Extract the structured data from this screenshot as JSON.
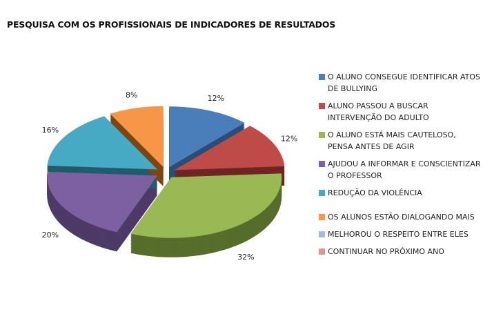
{
  "chart_data": {
    "type": "pie",
    "title": "PESQUISA COM OS PROFISSIONAIS DE INDICADORES DE RESULTADOS",
    "style": "3d-exploded",
    "legend_position": "right",
    "categories": [
      "O ALUNO CONSEGUE IDENTIFICAR ATOS DE BULLYING",
      "ALUNO PASSOU A BUSCAR INTERVENÇÃO DO ADULTO",
      "O ALUNO ESTÁ MAIS CAUTELOSO, PENSA ANTES DE AGIR",
      "AJUDOU A INFORMAR E CONSCIENTIZAR O PROFESSOR",
      "REDUÇÃO DA VIOLÊNCIA",
      "OS ALUNOS ESTÃO DIALOGANDO MAIS",
      "MELHOROU O RESPEITO ENTRE ELES",
      "CONTINUAR NO PRÓXIMO ANO"
    ],
    "values": [
      12,
      12,
      32,
      20,
      16,
      8,
      0,
      0
    ],
    "data_labels": [
      "12%",
      "12%",
      "32%",
      "20%",
      "16%",
      "8%",
      "",
      ""
    ],
    "colors": [
      "#4a7ebb",
      "#be4b48",
      "#98b954",
      "#7d60a0",
      "#46aac5",
      "#f79646",
      "#a5b9d9",
      "#d99694"
    ],
    "side_colors": [
      "#2c4d74",
      "#6e2523",
      "#566d2c",
      "#4e3a66",
      "#235b6b",
      "#7d4512",
      "#6b7f9c",
      "#9c5a58"
    ]
  }
}
